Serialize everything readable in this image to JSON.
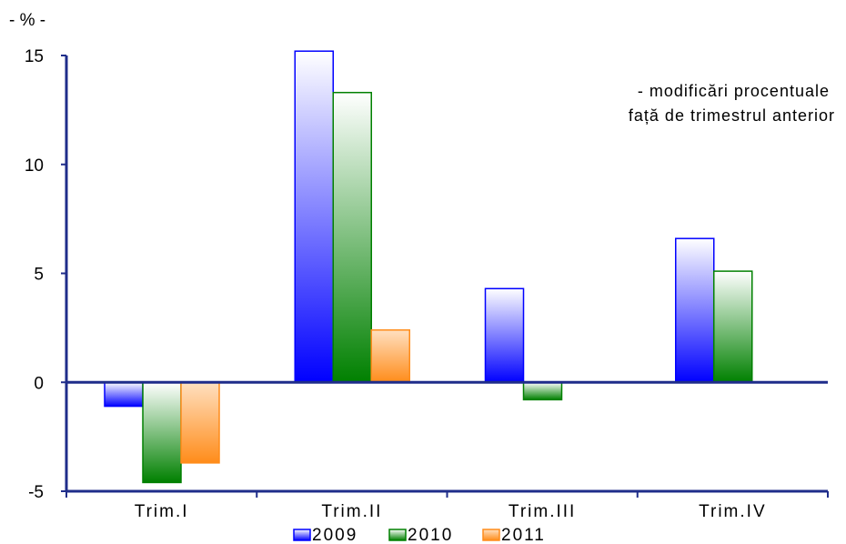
{
  "chart_data": {
    "type": "bar",
    "unit_label": "- % -",
    "annotation": [
      "- modificări procentuale",
      "față de trimestrul anterior"
    ],
    "categories": [
      "Trim.I",
      "Trim.II",
      "Trim.III",
      "Trim.IV"
    ],
    "ylim": [
      -5,
      15
    ],
    "yticks": [
      -5,
      0,
      5,
      10,
      15
    ],
    "grid": false,
    "legend_position": "bottom",
    "series": [
      {
        "name": "2009",
        "values": [
          -1.1,
          15.2,
          4.3,
          6.6
        ],
        "color": "#0000ff",
        "gradient_top": "#ffffff"
      },
      {
        "name": "2010",
        "values": [
          -4.6,
          13.3,
          -0.8,
          5.1
        ],
        "color": "#008000",
        "gradient_top": "#ffffff"
      },
      {
        "name": "2011",
        "values": [
          -3.7,
          2.4,
          null,
          null
        ],
        "color": "#ff8c1a",
        "gradient_top": "#ffe0c0"
      }
    ],
    "axis_color": "#1f2d8a"
  }
}
